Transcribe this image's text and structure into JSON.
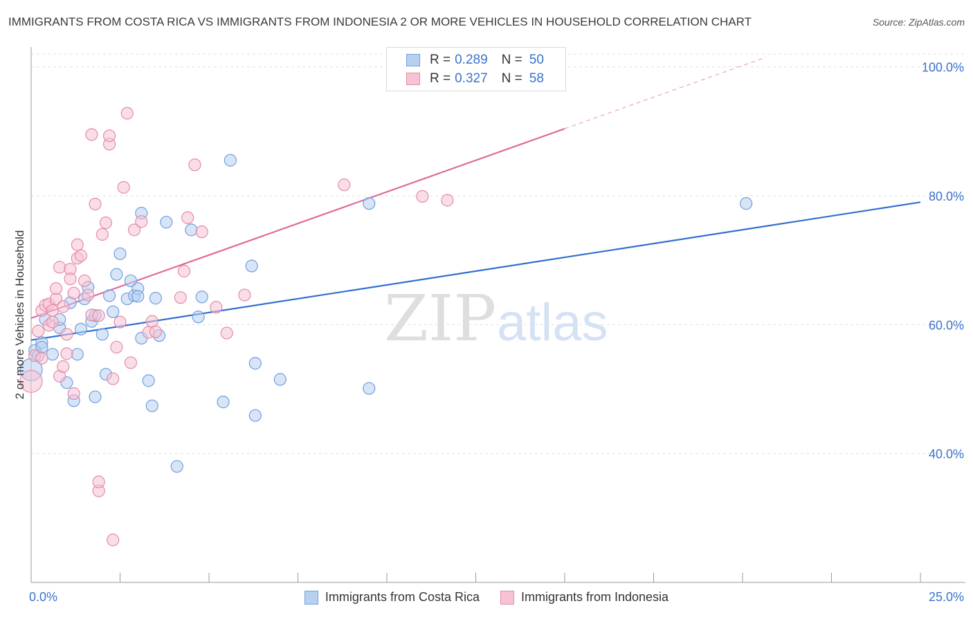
{
  "title": "IMMIGRANTS FROM COSTA RICA VS IMMIGRANTS FROM INDONESIA 2 OR MORE VEHICLES IN HOUSEHOLD CORRELATION CHART",
  "source": "Source: ZipAtlas.com",
  "watermark": {
    "zip": "ZIP",
    "atlas": "atlas"
  },
  "legend_top": [
    {
      "r_label": "R =",
      "r_value": "0.289",
      "n_label": "N =",
      "n_value": "50"
    },
    {
      "r_label": "R =",
      "r_value": "0.327",
      "n_label": "N =",
      "n_value": "58"
    }
  ],
  "chart_data": {
    "type": "scatter",
    "ylabel": "2 or more Vehicles in Household",
    "xlim": [
      0,
      25
    ],
    "ylim": [
      20,
      102
    ],
    "x_tick_labels": [
      {
        "value": 0,
        "label": "0.0%"
      },
      {
        "value": 25,
        "label": "25.0%"
      }
    ],
    "y_tick_labels": [
      {
        "value": 100,
        "label": "100.0%"
      },
      {
        "value": 80,
        "label": "80.0%"
      },
      {
        "value": 60,
        "label": "60.0%"
      },
      {
        "value": 40,
        "label": "40.0%"
      }
    ],
    "series": [
      {
        "name": "Immigrants from Costa Rica",
        "color": "#6f9fdf",
        "fill": "#b8d0f0",
        "trend": {
          "x0": 0,
          "y0": 57.6,
          "x1": 25,
          "y1": 79.0,
          "dash_from_x": null
        },
        "points": [
          [
            0.0,
            53.0
          ],
          [
            0.1,
            56.0
          ],
          [
            0.2,
            55.2
          ],
          [
            0.3,
            57.2
          ],
          [
            0.3,
            56.5
          ],
          [
            0.4,
            60.8
          ],
          [
            0.6,
            55.4
          ],
          [
            0.8,
            59.5
          ],
          [
            0.8,
            60.8
          ],
          [
            1.0,
            51.0
          ],
          [
            1.1,
            63.4
          ],
          [
            1.2,
            48.2
          ],
          [
            1.3,
            55.4
          ],
          [
            1.4,
            59.3
          ],
          [
            1.5,
            64.0
          ],
          [
            1.6,
            65.8
          ],
          [
            1.7,
            60.5
          ],
          [
            1.8,
            61.4
          ],
          [
            1.8,
            48.8
          ],
          [
            2.0,
            58.5
          ],
          [
            2.1,
            52.3
          ],
          [
            2.2,
            64.5
          ],
          [
            2.3,
            62.0
          ],
          [
            2.4,
            67.8
          ],
          [
            2.5,
            71.0
          ],
          [
            2.7,
            64.0
          ],
          [
            2.8,
            66.8
          ],
          [
            2.9,
            64.5
          ],
          [
            3.0,
            65.6
          ],
          [
            3.0,
            64.4
          ],
          [
            3.1,
            77.3
          ],
          [
            3.1,
            57.9
          ],
          [
            3.3,
            51.3
          ],
          [
            3.4,
            47.4
          ],
          [
            3.5,
            64.1
          ],
          [
            3.6,
            58.3
          ],
          [
            3.8,
            75.9
          ],
          [
            4.1,
            38.0
          ],
          [
            4.5,
            74.7
          ],
          [
            4.7,
            61.2
          ],
          [
            4.8,
            64.3
          ],
          [
            5.4,
            48.0
          ],
          [
            5.6,
            85.5
          ],
          [
            6.2,
            69.1
          ],
          [
            6.3,
            54.0
          ],
          [
            6.3,
            45.9
          ],
          [
            7.0,
            51.5
          ],
          [
            9.5,
            78.8
          ],
          [
            9.5,
            50.1
          ],
          [
            20.1,
            78.8
          ]
        ]
      },
      {
        "name": "Immigrants from Indonesia",
        "color": "#e58aa8",
        "fill": "#f6c3d4",
        "trend": {
          "x0": 0,
          "y0": 61.0,
          "x1": 25,
          "y1": 110.0,
          "dash_from_x": 15.0
        },
        "points": [
          [
            0.0,
            51.2
          ],
          [
            0.1,
            55.2
          ],
          [
            0.2,
            59.0
          ],
          [
            0.3,
            62.2
          ],
          [
            0.3,
            54.8
          ],
          [
            0.4,
            63.0
          ],
          [
            0.5,
            63.2
          ],
          [
            0.5,
            59.9
          ],
          [
            0.6,
            62.2
          ],
          [
            0.6,
            60.4
          ],
          [
            0.7,
            64.0
          ],
          [
            0.7,
            65.6
          ],
          [
            0.8,
            68.9
          ],
          [
            0.8,
            52.0
          ],
          [
            0.9,
            53.5
          ],
          [
            0.9,
            62.8
          ],
          [
            1.0,
            55.5
          ],
          [
            1.0,
            58.5
          ],
          [
            1.1,
            68.6
          ],
          [
            1.1,
            67.1
          ],
          [
            1.2,
            64.9
          ],
          [
            1.2,
            49.3
          ],
          [
            1.3,
            70.3
          ],
          [
            1.3,
            72.4
          ],
          [
            1.4,
            70.7
          ],
          [
            1.5,
            66.8
          ],
          [
            1.6,
            64.6
          ],
          [
            1.7,
            61.5
          ],
          [
            1.7,
            89.5
          ],
          [
            1.8,
            78.7
          ],
          [
            1.9,
            34.2
          ],
          [
            1.9,
            61.4
          ],
          [
            1.9,
            35.6
          ],
          [
            2.0,
            74.0
          ],
          [
            2.1,
            75.8
          ],
          [
            2.2,
            88.0
          ],
          [
            2.2,
            89.3
          ],
          [
            2.3,
            51.6
          ],
          [
            2.3,
            26.6
          ],
          [
            2.4,
            56.5
          ],
          [
            2.5,
            60.4
          ],
          [
            2.6,
            81.3
          ],
          [
            2.7,
            92.8
          ],
          [
            2.8,
            54.1
          ],
          [
            2.9,
            74.7
          ],
          [
            3.1,
            76.0
          ],
          [
            3.3,
            58.8
          ],
          [
            3.4,
            60.5
          ],
          [
            3.5,
            58.9
          ],
          [
            4.2,
            64.2
          ],
          [
            4.3,
            68.3
          ],
          [
            4.4,
            76.6
          ],
          [
            4.6,
            84.8
          ],
          [
            4.8,
            74.4
          ],
          [
            5.2,
            62.7
          ],
          [
            5.5,
            58.7
          ],
          [
            6.0,
            64.6
          ],
          [
            8.8,
            81.7
          ]
        ]
      }
    ],
    "extra_points": [
      {
        "x": 11.0,
        "y": 79.9,
        "series": "Immigrants from Indonesia"
      },
      {
        "x": 11.7,
        "y": 79.3,
        "series": "Immigrants from Indonesia"
      }
    ]
  }
}
